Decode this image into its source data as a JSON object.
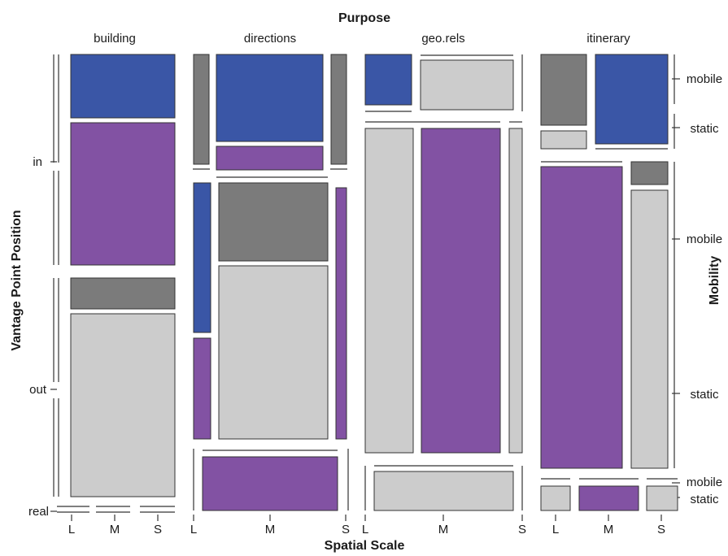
{
  "chart_data": {
    "type": "mosaic",
    "title": "Purpose",
    "xlabel": "Spatial Scale",
    "ylabel": "Vantage Point Position",
    "right_label": "Mobility",
    "purposes": [
      "building",
      "directions",
      "geo.rels",
      "itinerary"
    ],
    "scales": [
      "L",
      "M",
      "S"
    ],
    "vantage_points": [
      "in",
      "out",
      "real"
    ],
    "mobility_labels": [
      "mobile",
      "static",
      "mobile",
      "static",
      "mobile",
      "static"
    ],
    "colors": {
      "mobile_in": "#3a56a6",
      "static_in": "#8252a3",
      "mobile_out": "#7b7b7b",
      "static_out": "#cccccc",
      "mobile_real": "#7b7b7b",
      "static_real": "#cccccc",
      "alt_real": "#8252a3"
    },
    "cells": [
      {
        "purpose": "building",
        "scale": "L",
        "vantage": "in",
        "mobility": "mobile",
        "share": 0.26
      },
      {
        "purpose": "building",
        "scale": "L",
        "vantage": "in",
        "mobility": "static",
        "share": 0.74
      },
      {
        "purpose": "building",
        "scale": "L",
        "vantage": "out",
        "mobility": "mobile",
        "share": 0.14
      },
      {
        "purpose": "building",
        "scale": "L",
        "vantage": "out",
        "mobility": "static",
        "share": 0.86
      },
      {
        "purpose": "directions",
        "scale": "L",
        "vantage": "in",
        "mobility": "mobile",
        "share": 1.0
      },
      {
        "purpose": "directions",
        "scale": "M",
        "vantage": "in",
        "mobility": "mobile",
        "share": 0.82
      },
      {
        "purpose": "directions",
        "scale": "M",
        "vantage": "in",
        "mobility": "static",
        "share": 0.18
      },
      {
        "purpose": "directions",
        "scale": "S",
        "vantage": "in",
        "mobility": "mobile",
        "share": 1.0
      },
      {
        "purpose": "directions",
        "scale": "L",
        "vantage": "out",
        "mobility": "mobile",
        "share": 0.6
      },
      {
        "purpose": "directions",
        "scale": "L",
        "vantage": "out",
        "mobility": "static",
        "share": 0.4
      },
      {
        "purpose": "directions",
        "scale": "M",
        "vantage": "out",
        "mobility": "mobile",
        "share": 0.3
      },
      {
        "purpose": "directions",
        "scale": "M",
        "vantage": "out",
        "mobility": "static",
        "share": 0.7
      },
      {
        "purpose": "directions",
        "scale": "S",
        "vantage": "out",
        "mobility": "static",
        "share": 1.0
      },
      {
        "purpose": "directions",
        "scale": "M",
        "vantage": "real",
        "mobility": "static",
        "share": 1.0
      },
      {
        "purpose": "geo.rels",
        "scale": "L",
        "vantage": "in",
        "mobility": "mobile",
        "share": 1.0
      },
      {
        "purpose": "geo.rels",
        "scale": "M",
        "vantage": "in",
        "mobility": "static",
        "share": 1.0
      },
      {
        "purpose": "geo.rels",
        "scale": "L",
        "vantage": "out",
        "mobility": "static",
        "share": 1.0
      },
      {
        "purpose": "geo.rels",
        "scale": "M",
        "vantage": "out",
        "mobility": "static",
        "share": 1.0
      },
      {
        "purpose": "geo.rels",
        "scale": "S",
        "vantage": "out",
        "mobility": "static",
        "share": 1.0
      },
      {
        "purpose": "geo.rels",
        "scale": "M",
        "vantage": "real",
        "mobility": "static",
        "share": 1.0
      },
      {
        "purpose": "itinerary",
        "scale": "L",
        "vantage": "in",
        "mobility": "mobile",
        "share": 0.8
      },
      {
        "purpose": "itinerary",
        "scale": "L",
        "vantage": "in",
        "mobility": "static",
        "share": 0.2
      },
      {
        "purpose": "itinerary",
        "scale": "M",
        "vantage": "in",
        "mobility": "mobile",
        "share": 1.0
      },
      {
        "purpose": "itinerary",
        "scale": "L",
        "vantage": "out",
        "mobility": "static",
        "share": 1.0
      },
      {
        "purpose": "itinerary",
        "scale": "S",
        "vantage": "out",
        "mobility": "mobile",
        "share": 0.08
      },
      {
        "purpose": "itinerary",
        "scale": "S",
        "vantage": "out",
        "mobility": "static",
        "share": 0.92
      },
      {
        "purpose": "itinerary",
        "scale": "L",
        "vantage": "real",
        "mobility": "static",
        "share": 1.0
      },
      {
        "purpose": "itinerary",
        "scale": "M",
        "vantage": "real",
        "mobility": "static",
        "share": 1.0
      },
      {
        "purpose": "itinerary",
        "scale": "S",
        "vantage": "real",
        "mobility": "static",
        "share": 1.0
      }
    ]
  }
}
